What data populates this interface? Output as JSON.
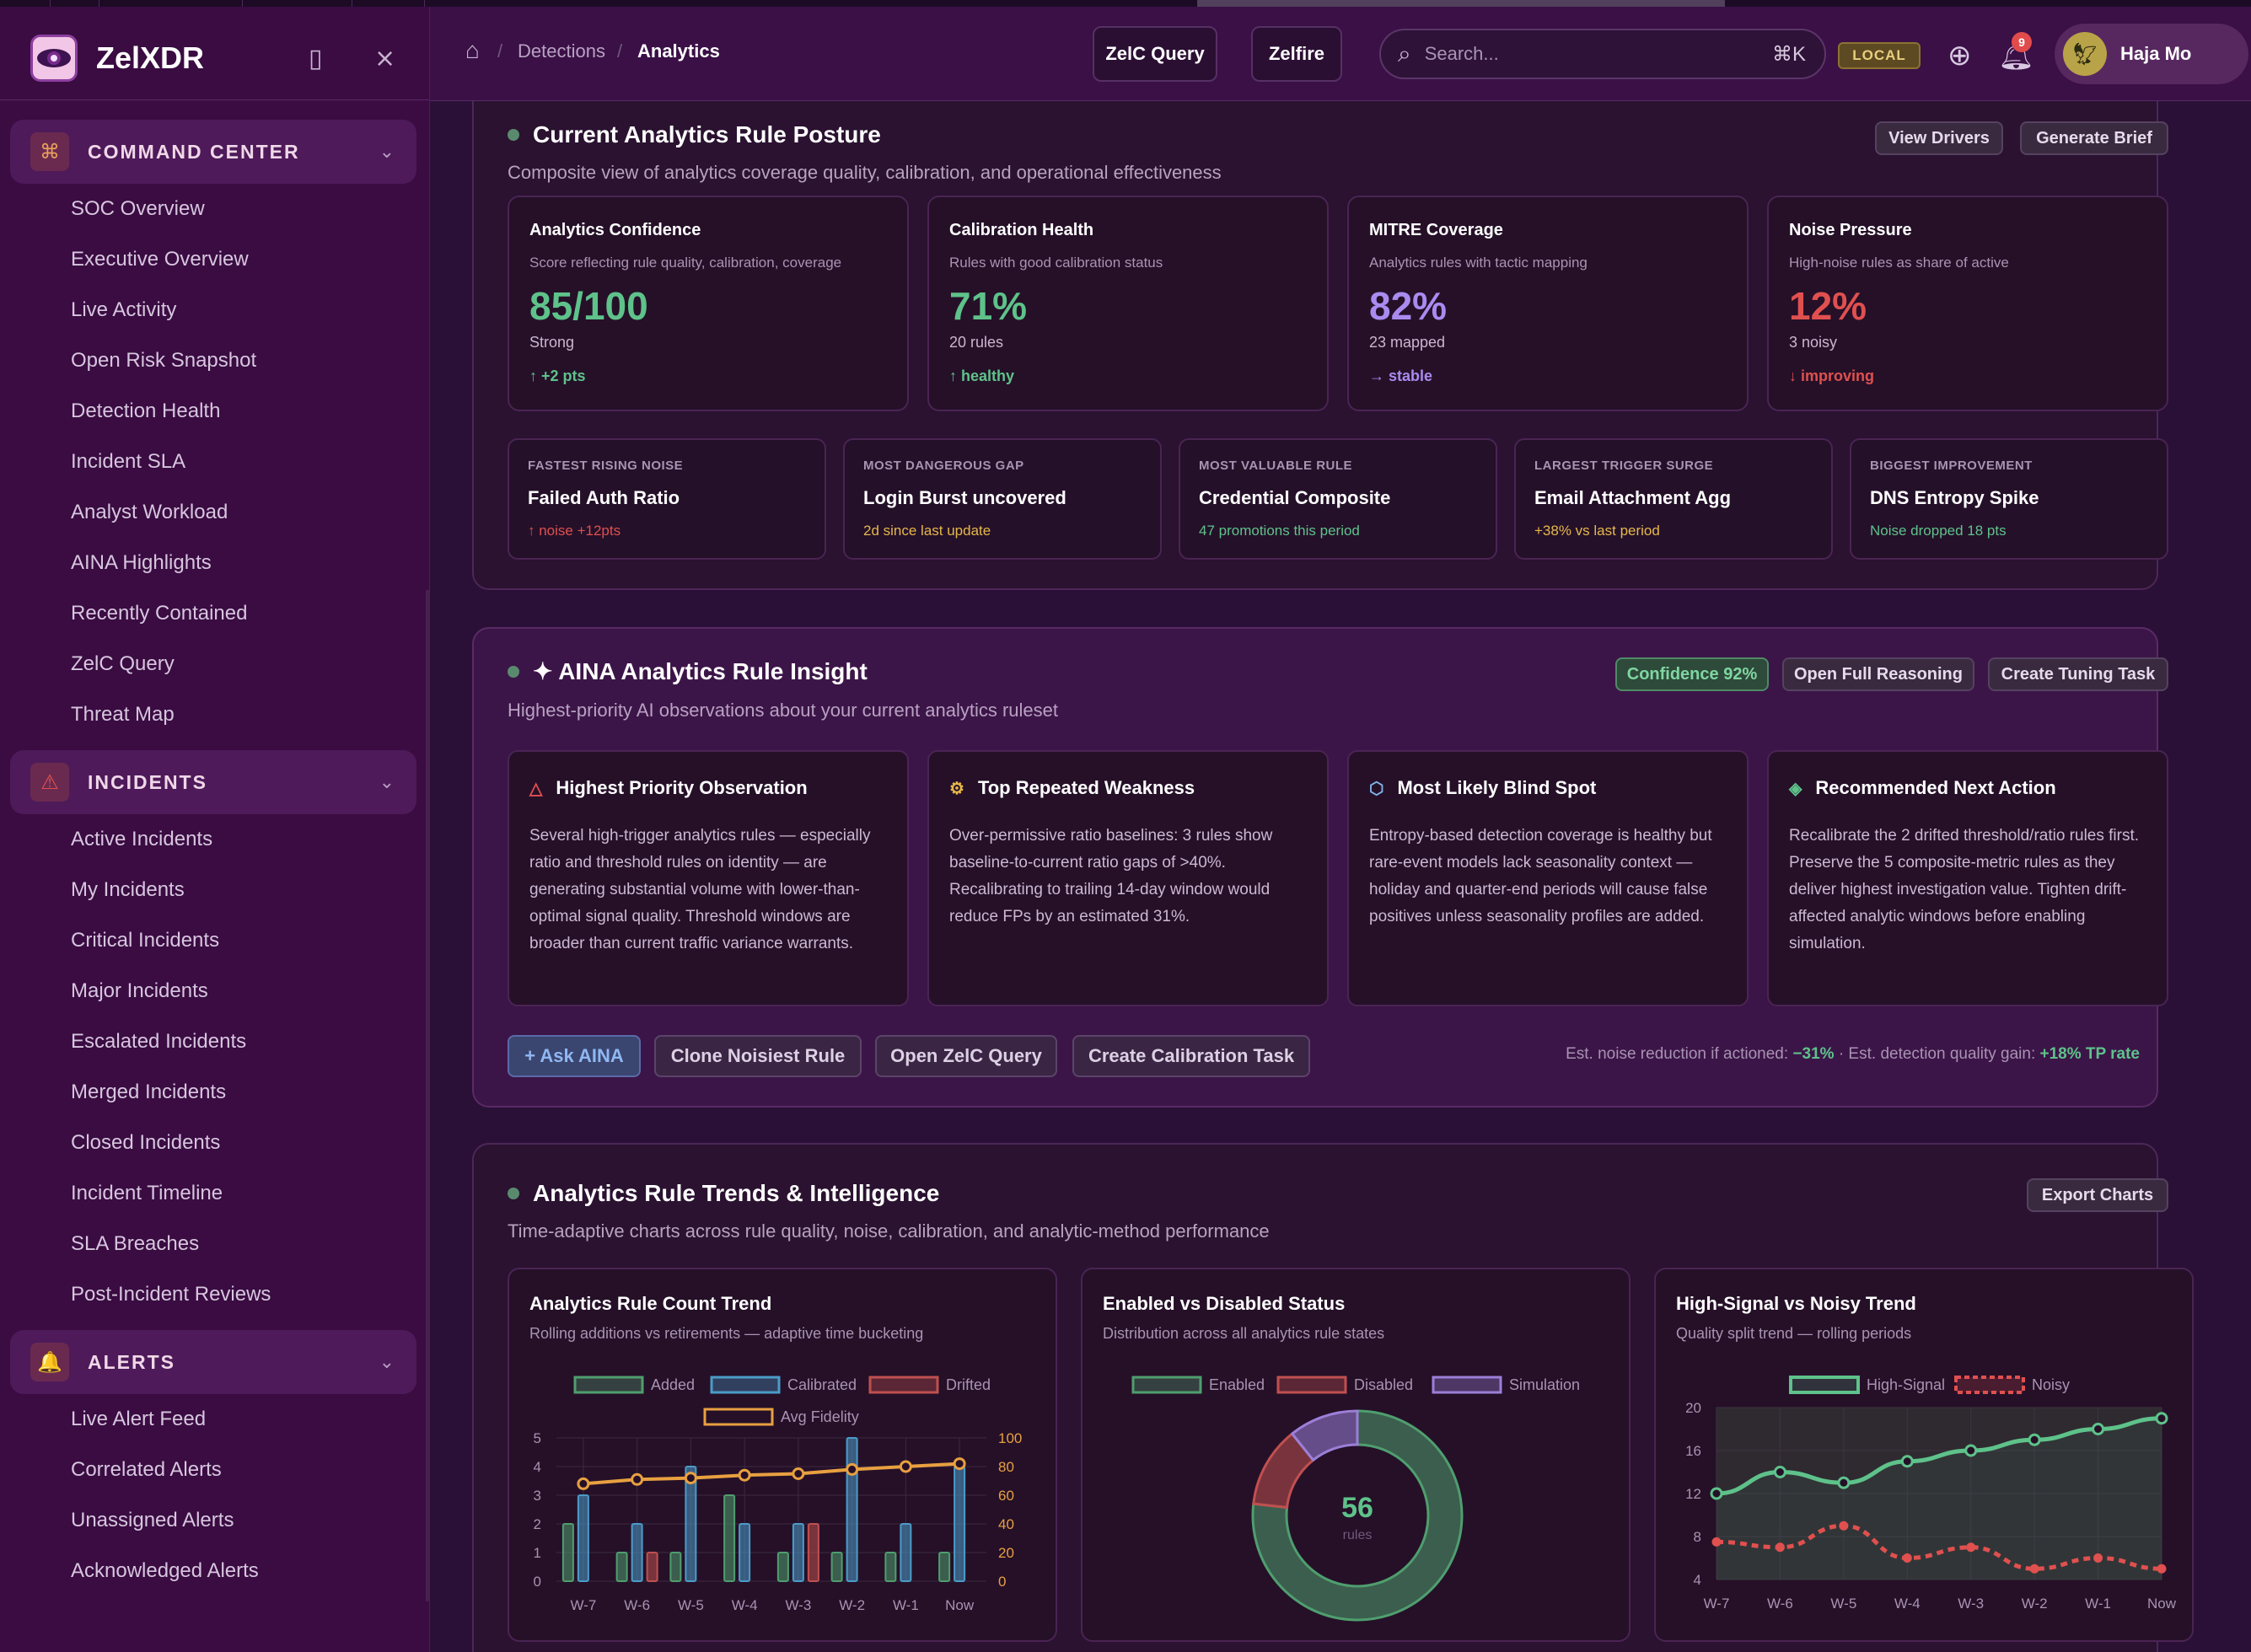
{
  "app": {
    "name": "ZelXDR"
  },
  "sidebar": {
    "sections": [
      {
        "label": "COMMAND CENTER",
        "icon": "command-icon",
        "items": [
          "SOC Overview",
          "Executive Overview",
          "Live Activity",
          "Open Risk Snapshot",
          "Detection Health",
          "Incident SLA",
          "Analyst Workload",
          "AINA Highlights",
          "Recently Contained",
          "ZelC Query",
          "Threat Map"
        ]
      },
      {
        "label": "INCIDENTS",
        "icon": "warning-icon",
        "items": [
          "Active Incidents",
          "My Incidents",
          "Critical Incidents",
          "Major Incidents",
          "Escalated Incidents",
          "Merged Incidents",
          "Closed Incidents",
          "Incident Timeline",
          "SLA Breaches",
          "Post-Incident Reviews"
        ]
      },
      {
        "label": "ALERTS",
        "icon": "bell-icon",
        "items": [
          "Live Alert Feed",
          "Correlated Alerts",
          "Unassigned Alerts",
          "Acknowledged Alerts"
        ]
      }
    ]
  },
  "header": {
    "breadcrumb": [
      "Detections",
      "Analytics"
    ],
    "zelc_query_label": "ZelC Query",
    "zelfire_label": "Zelfire",
    "search_placeholder": "Search...",
    "search_shortcut": "⌘K",
    "env_badge": "LOCAL",
    "notification_count": "9",
    "user_name": "Haja Mo"
  },
  "posture": {
    "title": "Current Analytics Rule Posture",
    "subtitle": "Composite view of analytics coverage quality, calibration, and operational effectiveness",
    "view_drivers": "View Drivers",
    "generate_brief": "Generate Brief",
    "metrics": [
      {
        "title": "Analytics Confidence",
        "sub": "Score reflecting rule quality, calibration, coverage",
        "value": "85/100",
        "meta": "Strong",
        "delta": "↑ +2 pts",
        "color": "#5ec28a"
      },
      {
        "title": "Calibration Health",
        "sub": "Rules with good calibration status",
        "value": "71%",
        "meta": "20 rules",
        "delta": "↑ healthy",
        "color": "#5ec28a"
      },
      {
        "title": "MITRE Coverage",
        "sub": "Analytics rules with tactic mapping",
        "value": "82%",
        "meta": "23 mapped",
        "delta": "→ stable",
        "color": "#a98bf0"
      },
      {
        "title": "Noise Pressure",
        "sub": "High-noise rules as share of active",
        "value": "12%",
        "meta": "3 noisy",
        "delta": "↓ improving",
        "color": "#e0504f"
      }
    ],
    "highlights": [
      {
        "kicker": "FASTEST RISING NOISE",
        "name": "Failed Auth Ratio",
        "detail": "↑ noise +12pts",
        "color": "#e0504f"
      },
      {
        "kicker": "MOST DANGEROUS GAP",
        "name": "Login Burst uncovered",
        "detail": "2d since last update",
        "color": "#e6b84a"
      },
      {
        "kicker": "MOST VALUABLE RULE",
        "name": "Credential Composite",
        "detail": "47 promotions this period",
        "color": "#5ec28a"
      },
      {
        "kicker": "LARGEST TRIGGER SURGE",
        "name": "Email Attachment Agg",
        "detail": "+38% vs last period",
        "color": "#e6b84a"
      },
      {
        "kicker": "BIGGEST IMPROVEMENT",
        "name": "DNS Entropy Spike",
        "detail": "Noise dropped 18 pts",
        "color": "#5ec28a"
      }
    ]
  },
  "insight": {
    "title": "✦ AINA Analytics Rule Insight",
    "subtitle": "Highest-priority AI observations about your current analytics ruleset",
    "confidence": "Confidence 92%",
    "open_reasoning": "Open Full Reasoning",
    "create_task": "Create Tuning Task",
    "cards": [
      {
        "title": "Highest Priority Observation",
        "icon": "alert-triangle-icon",
        "glyph": "△",
        "color": "#e0504f",
        "body": "Several high-trigger analytics rules — especially ratio and threshold rules on identity — are generating substantial volume with lower-than-optimal signal quality. Threshold windows are broader than current traffic variance warrants."
      },
      {
        "title": "Top Repeated Weakness",
        "icon": "gear-icon",
        "glyph": "⚙",
        "color": "#e6b84a",
        "body": "Over-permissive ratio baselines: 3 rules show baseline-to-current ratio gaps of >40%. Recalibrating to trailing 14-day window would reduce FPs by an estimated 31%."
      },
      {
        "title": "Most Likely Blind Spot",
        "icon": "hexagon-icon",
        "glyph": "⬡",
        "color": "#7fb3e8",
        "body": "Entropy-based detection coverage is healthy but rare-event models lack seasonality context — holiday and quarter-end periods will cause false positives unless seasonality profiles are added."
      },
      {
        "title": "Recommended Next Action",
        "icon": "diamond-icon",
        "glyph": "◈",
        "color": "#5ec28a",
        "body": "Recalibrate the 2 drifted threshold/ratio rules first. Preserve the 5 composite-metric rules as they deliver highest investigation value. Tighten drift-affected analytic windows before enabling simulation."
      }
    ],
    "actions": [
      "+ Ask AINA",
      "Clone Noisiest Rule",
      "Open ZelC Query",
      "Create Calibration Task"
    ],
    "footer_prefix": "Est. noise reduction if actioned: ",
    "footer_noise": "−31%",
    "footer_mid": " · Est. detection quality gain: ",
    "footer_gain": "+18% TP rate"
  },
  "trends": {
    "title": "Analytics Rule Trends & Intelligence",
    "subtitle": "Time-adaptive charts across rule quality, noise, calibration, and analytic-method performance",
    "export": "Export Charts"
  },
  "chart_data": [
    {
      "type": "bar",
      "title": "Analytics Rule Count Trend",
      "subtitle": "Rolling additions vs retirements — adaptive time bucketing",
      "categories": [
        "W-7",
        "W-6",
        "W-5",
        "W-4",
        "W-3",
        "W-2",
        "W-1",
        "Now"
      ],
      "series": [
        {
          "name": "Added",
          "values": [
            2,
            1,
            1,
            3,
            1,
            1,
            1,
            1
          ],
          "color": "#4f9e6e"
        },
        {
          "name": "Calibrated",
          "values": [
            3,
            2,
            4,
            2,
            2,
            5,
            2,
            4
          ],
          "color": "#4a9cc8"
        },
        {
          "name": "Drifted",
          "values": [
            0,
            1,
            0,
            0,
            2,
            0,
            0,
            0
          ],
          "color": "#c0504f"
        }
      ],
      "line": {
        "name": "Avg Fidelity",
        "values": [
          68,
          71,
          72,
          74,
          75,
          78,
          80,
          82
        ],
        "color": "#e8a040"
      },
      "ylim": [
        0,
        5
      ],
      "y2lim": [
        0,
        100
      ],
      "yticks": [
        "0",
        "1",
        "2",
        "3",
        "4",
        "5"
      ],
      "y2ticks": [
        "0",
        "20",
        "40",
        "60",
        "80",
        "100"
      ]
    },
    {
      "type": "pie",
      "title": "Enabled vs Disabled Status",
      "subtitle": "Distribution across all analytics rule states",
      "center_value": "56",
      "center_label": "rules",
      "legend": [
        "Enabled",
        "Disabled",
        "Simulation"
      ],
      "values": [
        43,
        7,
        6
      ],
      "colors": [
        "#4f9e6e",
        "#c0504f",
        "#9b7fd8"
      ]
    },
    {
      "type": "line",
      "title": "High-Signal vs Noisy Trend",
      "subtitle": "Quality split trend — rolling periods",
      "categories": [
        "W-7",
        "W-6",
        "W-5",
        "W-4",
        "W-3",
        "W-2",
        "W-1",
        "Now"
      ],
      "series": [
        {
          "name": "High-Signal",
          "values": [
            12,
            14,
            13,
            15,
            16,
            17,
            18,
            19
          ],
          "color": "#5ec28a"
        },
        {
          "name": "Noisy",
          "values": [
            7.5,
            7,
            9,
            6,
            7,
            5,
            6,
            5
          ],
          "color": "#e0504f"
        }
      ],
      "ylim": [
        4,
        20
      ],
      "yticks": [
        "4",
        "8",
        "12",
        "16",
        "20"
      ]
    }
  ]
}
